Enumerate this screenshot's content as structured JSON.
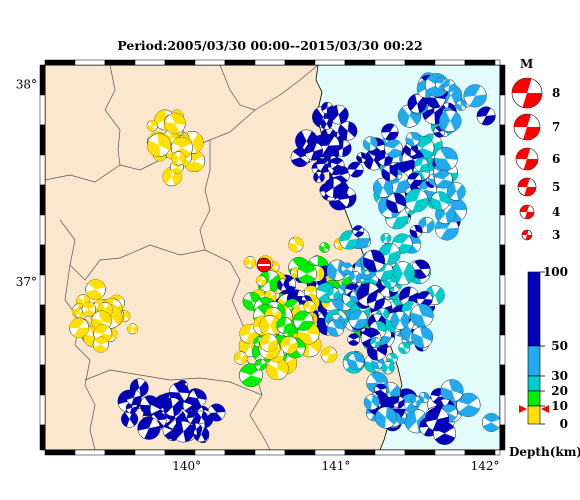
{
  "title": "Period:2005/03/30 00:00--2015/03/30 00:22",
  "map": {
    "lon_range": [
      139.05,
      142.1
    ],
    "lat_range": [
      36.15,
      38.1
    ],
    "lon_ticks": [
      {
        "value": 140,
        "label": "140°"
      },
      {
        "value": 141,
        "label": "141°"
      },
      {
        "value": 142,
        "label": "142°"
      }
    ],
    "lat_ticks": [
      {
        "value": 37,
        "label": "37°"
      },
      {
        "value": 38,
        "label": "38°"
      }
    ],
    "colors": {
      "land": "#fbe6ce",
      "sea": "#e3fcfc",
      "border": "#4a4a4a",
      "coast": "#000000"
    }
  },
  "magnitude_legend": {
    "title": "M",
    "items": [
      "8",
      "7",
      "6",
      "5",
      "4",
      "3"
    ],
    "color": "#ff0000"
  },
  "depth_legend": {
    "title": "Depth(km)",
    "ticks": [
      "100",
      "50",
      "30",
      "20",
      "10",
      "0"
    ],
    "colors": {
      "0-10": "#ffe000",
      "10-20": "#ffe000",
      "20-30": "#00ee00",
      "30-50": "#00cccc",
      "50-100": "#22aaee",
      "100+": "#0000bb"
    }
  },
  "marker": {
    "label": "current event",
    "color": "#ff0000"
  }
}
